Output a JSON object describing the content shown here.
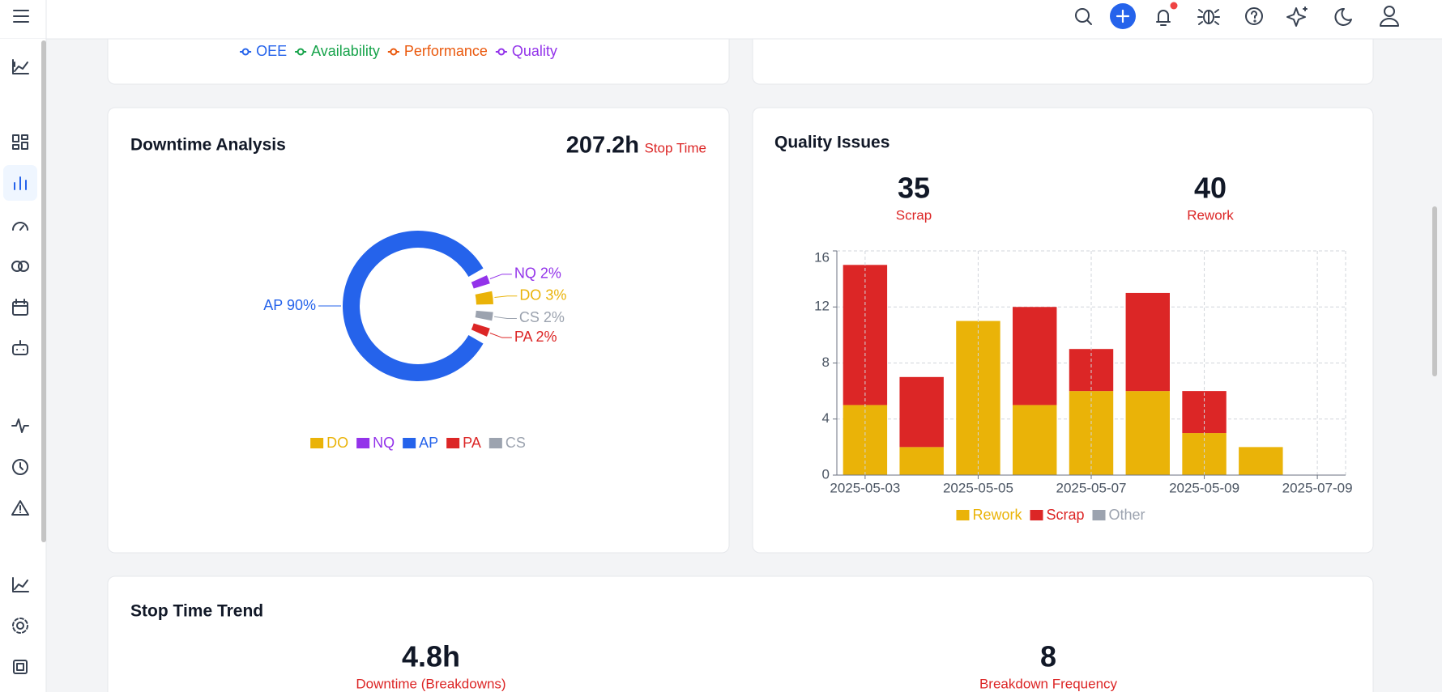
{
  "oee_card": {
    "legend": [
      {
        "name": "OEE",
        "color": "#2563eb"
      },
      {
        "name": "Availability",
        "color": "#16a34a"
      },
      {
        "name": "Performance",
        "color": "#ea580c"
      },
      {
        "name": "Quality",
        "color": "#9333ea"
      }
    ]
  },
  "downtime_card": {
    "title": "Downtime Analysis",
    "kpi_value": "207.2h",
    "kpi_label": "Stop Time"
  },
  "quality_card": {
    "title": "Quality Issues",
    "kpis": [
      {
        "value": 35,
        "label": "Scrap"
      },
      {
        "value": 40,
        "label": "Rework"
      }
    ]
  },
  "stop_time_card": {
    "title": "Stop Time Trend",
    "kpis": [
      {
        "value": "4.8h",
        "label": "Downtime (Breakdowns)"
      },
      {
        "value": 8,
        "label": "Breakdown Frequency"
      }
    ]
  },
  "chart_data": [
    {
      "type": "donut",
      "categories": [
        "NQ",
        "DO",
        "CS",
        "PA",
        "AP"
      ],
      "values": [
        2,
        3,
        2,
        2,
        90
      ],
      "value_labels": [
        "NQ 2%",
        "DO 3%",
        "CS 2%",
        "PA 2%",
        "AP 90%"
      ],
      "colors": [
        "#9333ea",
        "#eab308",
        "#9ca3af",
        "#dc2626",
        "#2563eb"
      ],
      "legend": [
        "DO",
        "NQ",
        "AP",
        "PA",
        "CS"
      ]
    },
    {
      "type": "bar",
      "stacked": true,
      "categories": [
        "2025-05-03",
        null,
        "2025-05-05",
        null,
        "2025-05-07",
        null,
        "2025-05-09",
        null,
        "2025-07-09"
      ],
      "series": [
        {
          "name": "Rework",
          "color": "#eab308",
          "values": [
            5,
            2,
            11,
            5,
            6,
            6,
            3,
            2,
            null
          ]
        },
        {
          "name": "Scrap",
          "color": "#dc2626",
          "values": [
            10,
            5,
            0,
            7,
            3,
            7,
            3,
            0,
            null
          ]
        },
        {
          "name": "Other",
          "color": "#9ca3af",
          "values": [
            null,
            null,
            null,
            null,
            null,
            null,
            null,
            null,
            null
          ]
        }
      ],
      "ylim": [
        0,
        16
      ],
      "yticks": [
        0,
        4,
        8,
        12,
        16
      ],
      "grid": true
    }
  ]
}
